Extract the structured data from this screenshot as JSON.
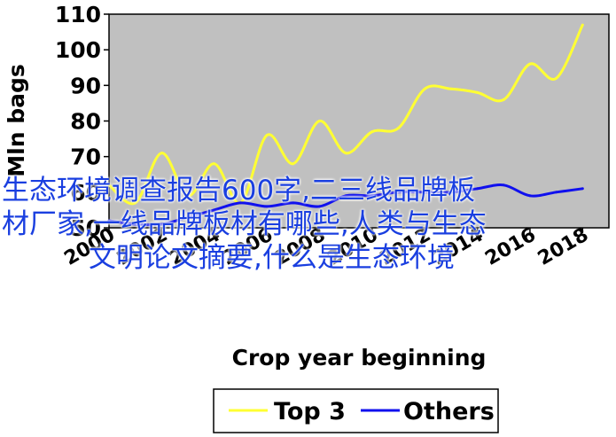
{
  "chart_data": {
    "type": "line",
    "title": "",
    "xlabel": "Crop year beginning",
    "ylabel": "Mln bags",
    "x": [
      2000,
      2001,
      2002,
      2003,
      2004,
      2005,
      2006,
      2007,
      2008,
      2009,
      2010,
      2011,
      2012,
      2013,
      2014,
      2015,
      2016,
      2017,
      2018
    ],
    "x_ticks": [
      "2000",
      "2002",
      "2004",
      "2006",
      "2008",
      "2010",
      "2012",
      "2014",
      "2016",
      "2018"
    ],
    "y_ticks": [
      "50",
      "60",
      "70",
      "80",
      "90",
      "100",
      "110"
    ],
    "xlim": [
      2000,
      2019
    ],
    "ylim": [
      50,
      110
    ],
    "grid": false,
    "legend_position": "bottom",
    "background": "#c0c0c0",
    "series": [
      {
        "name": "Top 3",
        "color": "#ffff33",
        "values": [
          62,
          57,
          71,
          59,
          68,
          57,
          76,
          68,
          80,
          71,
          77,
          78,
          89,
          89,
          88,
          86,
          96,
          92,
          107
        ]
      },
      {
        "name": "Others",
        "color": "#1010ee",
        "values": [
          52,
          51,
          51,
          53,
          55,
          57,
          56,
          57,
          56,
          59,
          59,
          60,
          60,
          60,
          61,
          62,
          59,
          60,
          61
        ]
      }
    ]
  },
  "overlay_text": {
    "line1": "生态环境调查报告600字,二三线品牌板",
    "line2": "材厂家,一线品牌板材有哪些,人类与生态",
    "line3": "文明论文摘要,什么是生态环境"
  }
}
